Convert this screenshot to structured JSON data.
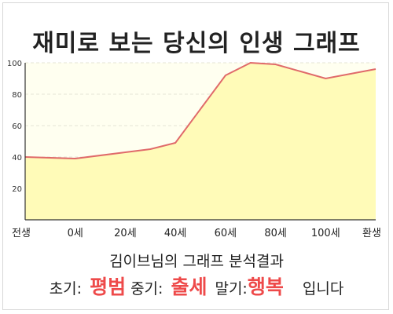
{
  "title": "재미로 보는 당신의 인생 그래프",
  "subtitle": "김이브님의 그래프 분석결과",
  "summary": {
    "early_label": "초기:",
    "early_value": "평범",
    "mid_label": "중기:",
    "mid_value": "출세",
    "late_label": "말기:",
    "late_value": "행복",
    "suffix": "입니다"
  },
  "colors": {
    "area_fill": "#fffbb8",
    "line": "#e06a6a",
    "plot_bg": "#fffff0",
    "highlight": "#ee4a4a"
  },
  "chart_data": {
    "type": "area",
    "title": "재미로 보는 당신의 인생 그래프",
    "x": [
      "전생",
      "0세",
      "20세",
      "40세",
      "60세",
      "80세",
      "100세",
      "환생"
    ],
    "points": [
      {
        "x": "전생",
        "y": 40
      },
      {
        "x": "0세",
        "y": 39
      },
      {
        "x": "20세",
        "y": 43
      },
      {
        "x": "30세",
        "y": 45
      },
      {
        "x": "40세",
        "y": 49
      },
      {
        "x": "60세",
        "y": 92
      },
      {
        "x": "70세",
        "y": 100
      },
      {
        "x": "80세",
        "y": 99
      },
      {
        "x": "100세",
        "y": 90
      },
      {
        "x": "환생",
        "y": 96
      }
    ],
    "yticks": [
      20,
      40,
      60,
      80,
      100
    ],
    "ylim": [
      0,
      100
    ],
    "grid": true,
    "legend": "none"
  }
}
